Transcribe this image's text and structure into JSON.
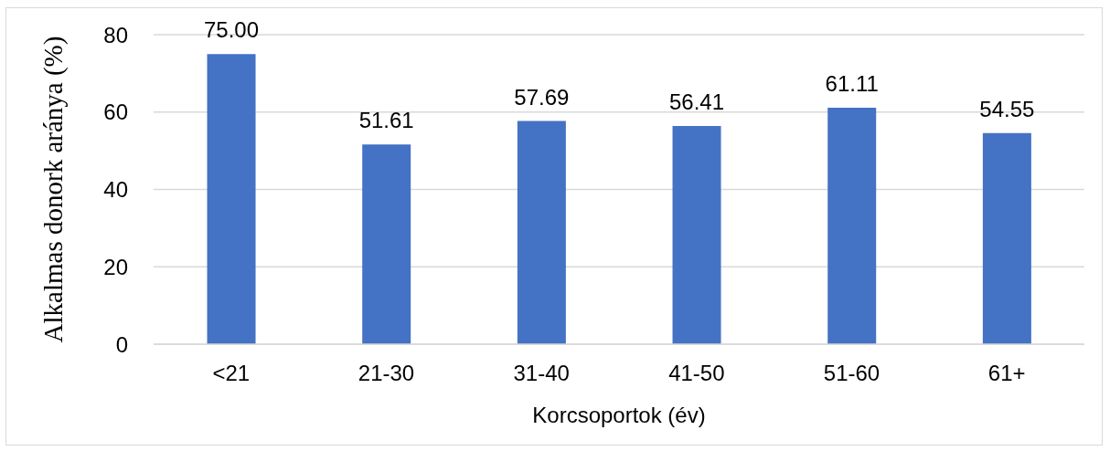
{
  "chart_data": {
    "type": "bar",
    "xlabel": "Korcsoportok (év)",
    "ylabel": "Alkalmas donork aránya (%)",
    "categories": [
      "<21",
      "21-30",
      "31-40",
      "41-50",
      "51-60",
      "61+"
    ],
    "values": [
      75.0,
      51.61,
      57.69,
      56.41,
      61.11,
      54.55
    ],
    "value_labels": [
      "75.00",
      "51.61",
      "57.69",
      "56.41",
      "61.11",
      "54.55"
    ],
    "color": "#4472c4",
    "ylim": [
      0,
      80
    ],
    "yticks": [
      0,
      20,
      40,
      60,
      80
    ],
    "grid": "y"
  }
}
